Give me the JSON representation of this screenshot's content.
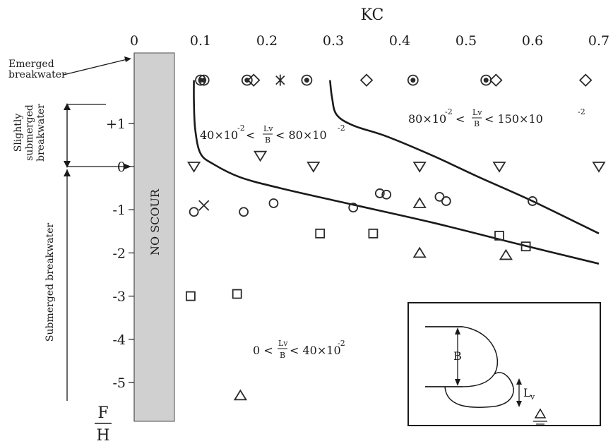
{
  "chart_data": {
    "type": "scatter",
    "title": "KC",
    "xlabel": "KC",
    "ylabel": "F/H",
    "ylabel_num": "F",
    "ylabel_den": "H",
    "xlim": [
      0,
      0.7
    ],
    "ylim": [
      -5.5,
      2.7
    ],
    "x_ticks": [
      "0",
      "0.1",
      "0.2",
      "0.3",
      "0.4",
      "0.5",
      "0.6",
      "0.7"
    ],
    "y_ticks": [
      "+1",
      "0",
      "-1",
      "-2",
      "-3",
      "-4",
      "-5"
    ],
    "no_scour_region": {
      "label": "NO SCOUR",
      "x_range": [
        0,
        0.06
      ]
    },
    "regions": [
      {
        "label_line1": "Emerged",
        "label_line2": "breakwater",
        "fh_value": 2.0
      },
      {
        "label_line1": "Slightly",
        "label_line2": "submerged",
        "label_line3": "breakwater",
        "fh_range": [
          0,
          1.4
        ]
      },
      {
        "label": "Submerged breakwater",
        "fh_range": [
          -5.3,
          0
        ]
      }
    ],
    "annotations": {
      "lower": {
        "left": "0 <",
        "frac_num": "Lv",
        "frac_den": "B",
        "right": "< 40×10",
        "exp": "-2"
      },
      "middle": {
        "left": "40×10",
        "left_exp": "-2",
        "lt1": " < ",
        "frac_num": "Lv",
        "frac_den": "B",
        "lt2": " < 80×10",
        "exp": "-2"
      },
      "upper": {
        "left": "80×10",
        "left_exp": "-2",
        "lt1": " < ",
        "frac_num": "Lv",
        "frac_den": "B",
        "lt2": " < 150×10",
        "exp": "-2"
      }
    },
    "curves": [
      {
        "name": "boundary-0.4",
        "points": [
          [
            0.09,
            2.0
          ],
          [
            0.09,
            1.5
          ],
          [
            0.092,
            0.85
          ],
          [
            0.1,
            0.3
          ],
          [
            0.12,
            0.05
          ],
          [
            0.16,
            -0.25
          ],
          [
            0.22,
            -0.5
          ],
          [
            0.32,
            -0.85
          ],
          [
            0.45,
            -1.3
          ],
          [
            0.58,
            -1.8
          ],
          [
            0.7,
            -2.25
          ]
        ]
      },
      {
        "name": "boundary-0.8",
        "points": [
          [
            0.295,
            2.0
          ],
          [
            0.298,
            1.6
          ],
          [
            0.305,
            1.2
          ],
          [
            0.33,
            0.95
          ],
          [
            0.38,
            0.7
          ],
          [
            0.45,
            0.25
          ],
          [
            0.52,
            -0.25
          ],
          [
            0.6,
            -0.8
          ],
          [
            0.7,
            -1.55
          ]
        ]
      }
    ],
    "series": [
      {
        "marker": "dot-circle",
        "points": [
          [
            0.1,
            2.0
          ],
          [
            0.105,
            2.0
          ],
          [
            0.17,
            2.0
          ],
          [
            0.26,
            2.0
          ],
          [
            0.42,
            2.0
          ],
          [
            0.53,
            2.0
          ]
        ]
      },
      {
        "marker": "diamond",
        "points": [
          [
            0.18,
            2.0
          ],
          [
            0.35,
            2.0
          ],
          [
            0.545,
            2.0
          ],
          [
            0.68,
            2.0
          ]
        ]
      },
      {
        "marker": "star",
        "points": [
          [
            0.22,
            2.0
          ]
        ]
      },
      {
        "marker": "triangle-down",
        "points": [
          [
            0.09,
            0.0
          ],
          [
            0.19,
            0.25
          ],
          [
            0.27,
            0.0
          ],
          [
            0.43,
            0.0
          ],
          [
            0.55,
            0.0
          ],
          [
            0.7,
            0.0
          ]
        ]
      },
      {
        "marker": "circle",
        "points": [
          [
            0.09,
            -1.05
          ],
          [
            0.165,
            -1.05
          ],
          [
            0.21,
            -0.85
          ],
          [
            0.33,
            -0.95
          ],
          [
            0.37,
            -0.62
          ],
          [
            0.38,
            -0.65
          ],
          [
            0.46,
            -0.7
          ],
          [
            0.47,
            -0.8
          ],
          [
            0.6,
            -0.8
          ]
        ]
      },
      {
        "marker": "cross",
        "points": [
          [
            0.105,
            -0.9
          ]
        ]
      },
      {
        "marker": "triangle-up",
        "points": [
          [
            0.43,
            -0.85
          ],
          [
            0.43,
            -2.0
          ],
          [
            0.56,
            -2.05
          ],
          [
            0.16,
            -5.3
          ]
        ]
      },
      {
        "marker": "square",
        "points": [
          [
            0.28,
            -1.55
          ],
          [
            0.36,
            -1.55
          ],
          [
            0.55,
            -1.6
          ],
          [
            0.59,
            -1.85
          ],
          [
            0.085,
            -3.0
          ],
          [
            0.155,
            -2.95
          ]
        ]
      }
    ]
  }
}
